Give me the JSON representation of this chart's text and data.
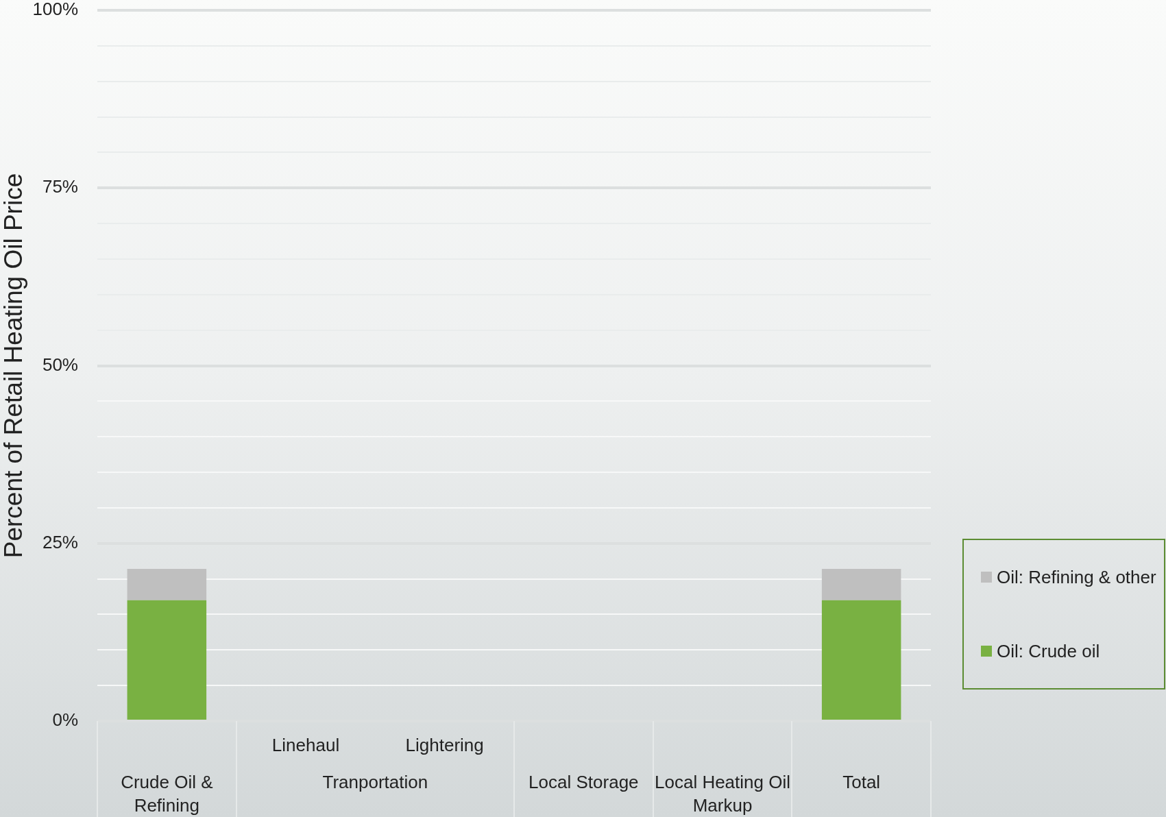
{
  "chart_data": {
    "type": "bar",
    "stacked": true,
    "ylabel": "Percent of Retail Heating Oil Price",
    "categories": [
      "Crude Oil & Refining",
      "Linehaul",
      "Lightering",
      "Local Storage",
      "Local Heating Oil Markup",
      "Total"
    ],
    "series": [
      {
        "name": "Oil: Crude oil",
        "color": "#79b142",
        "values": [
          17.0,
          null,
          null,
          null,
          null,
          17.0
        ]
      },
      {
        "name": "Oil: Refining & other",
        "color": "#bfbfbf",
        "values": [
          4.4,
          null,
          null,
          null,
          null,
          4.4
        ]
      }
    ],
    "ylim": [
      0,
      100
    ],
    "yticks": [
      {
        "value": 0,
        "label": "0%"
      },
      {
        "value": 5,
        "label": null
      },
      {
        "value": 10,
        "label": null
      },
      {
        "value": 15,
        "label": null
      },
      {
        "value": 20,
        "label": null
      },
      {
        "value": 25,
        "label": "25%"
      },
      {
        "value": 30,
        "label": null
      },
      {
        "value": 35,
        "label": null
      },
      {
        "value": 40,
        "label": null
      },
      {
        "value": 45,
        "label": null
      },
      {
        "value": 50,
        "label": "50%"
      },
      {
        "value": 55,
        "label": null
      },
      {
        "value": 60,
        "label": null
      },
      {
        "value": 65,
        "label": null
      },
      {
        "value": 70,
        "label": null
      },
      {
        "value": 75,
        "label": "75%"
      },
      {
        "value": 80,
        "label": null
      },
      {
        "value": 85,
        "label": null
      },
      {
        "value": 90,
        "label": null
      },
      {
        "value": 95,
        "label": null
      },
      {
        "value": 100,
        "label": "100%"
      }
    ],
    "grid": "y",
    "legend": "right",
    "annotations": [
      "Tranportation"
    ]
  }
}
